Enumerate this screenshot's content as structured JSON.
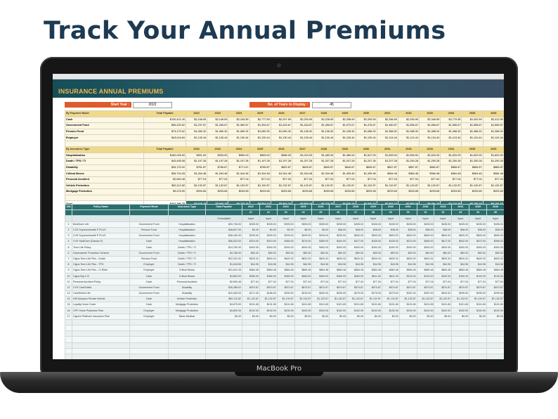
{
  "headline": "Track Your Annual Premiums",
  "device_label": "MacBook Pro",
  "sheet": {
    "title": "INSURANCE ANNUAL PREMIUMS",
    "start_year_label": "Start Year :",
    "start_year": "2022",
    "years_label": "No. of Years to Display :",
    "years_value": "45"
  },
  "years": [
    "2022",
    "2023",
    "2024",
    "2025",
    "2026",
    "2027",
    "2028",
    "2029",
    "2030",
    "2031",
    "2032",
    "2033",
    "2034",
    "2035",
    "2036"
  ],
  "by_payment": {
    "header": "By Payment Mode",
    "total_header": "Total Payable",
    "rows": [
      {
        "name": "Cash",
        "total": "$130,421.40",
        "vals": [
          "$2,158.59",
          "$2,148.59",
          "$2,163.59",
          "$2,777.59",
          "$2,297.59",
          "$2,200.59",
          "$2,228.59",
          "$2,258.59",
          "$2,259.59",
          "$2,286.59",
          "$2,330.59",
          "$2,346.59",
          "$2,770.59",
          "$2,402.59",
          "$2,412.59"
        ]
      },
      {
        "name": "Government Fund",
        "total": "$96,209.52",
        "vals": [
          "$1,237.67",
          "$1,265.67",
          "$1,369.67",
          "$1,394.67",
          "$1,429.67",
          "$1,434.67",
          "$1,455.67",
          "$1,570.67",
          "$1,476.67",
          "$1,480.67",
          "$1,556.67",
          "$1,556.67",
          "$1,556.67",
          "$1,556.67",
          "$1,556.67"
        ]
      },
      {
        "name": "Pension Fund",
        "total": "$73,170.92",
        "vals": [
          "$1,080.32",
          "$1,080.32",
          "$1,080.32",
          "$1,080.32",
          "$1,080.32",
          "$1,136.32",
          "$1,136.32",
          "$1,136.32",
          "$1,088.32",
          "$1,388.32",
          "$1,388.32",
          "$1,388.32",
          "$1,388.32",
          "$1,388.32",
          "$1,388.32"
        ]
      },
      {
        "name": "Employer",
        "total": "$43,044.84",
        "vals": [
          "$1,130.44",
          "$1,130.44",
          "$1,130.44",
          "$1,130.44",
          "$1,130.44",
          "$1,130.44",
          "$1,130.44",
          "$1,130.44",
          "$1,130.44",
          "$1,124.44",
          "$1,124.44",
          "$1,124.44",
          "$1,124.44",
          "$1,124.44",
          "$1,124.44"
        ]
      }
    ],
    "total_label": "Total",
    "total": "$342,396.78",
    "total_vals": [
      "$5,628.19",
      "$5,666.19",
      "$5,776.19",
      "$5,804.19",
      "$5,804.19",
      "$5,854.19",
      "$6,216.19",
      "$6,540.19",
      "$6,540.19",
      "$6,563.19",
      "$6,563.19",
      "$6,091.19",
      "$6,122.19",
      "$6,150.19",
      "$6,151.19"
    ]
  },
  "by_type": {
    "header": "By Insurance Type",
    "total_header": "Total Payable",
    "rows": [
      {
        "name": "Hospitalisation",
        "total": "$182,026.00",
        "vals": [
          "$901.00",
          "$934.00",
          "$969.00",
          "$983.00",
          "$986.00",
          "$1,010.00",
          "$1,480.00",
          "$1,480.00",
          "$1,547.00",
          "$1,559.00",
          "$1,559.00",
          "$1,620.00",
          "$1,620.00",
          "$1,620.00",
          "$1,620.00"
        ]
      },
      {
        "name": "Death / TPD / TI",
        "total": "$43,495.08",
        "vals": [
          "$1,197.28",
          "$1,197.28",
          "$1,197.28",
          "$1,197.28",
          "$1,197.28",
          "$1,207.28",
          "$1,207.28",
          "$1,207.28",
          "$1,207.28",
          "$1,207.28",
          "$1,250.28",
          "$1,250.28",
          "$1,250.28",
          "$1,250.28",
          "$1,250.28"
        ]
      },
      {
        "name": "Disability",
        "total": "$26,722.02",
        "vals": [
          "$761.87",
          "$766.87",
          "$771.87",
          "$785.87",
          "$820.87",
          "$825.87",
          "$840.87",
          "$840.87",
          "$845.87",
          "$857.87",
          "$857.87",
          "$862.87",
          "$865.87",
          "$865.87",
          "$865.87"
        ]
      },
      {
        "name": "Critical Illness",
        "total": "$36,704.28",
        "vals": [
          "$1,264.48",
          "$1,264.48",
          "$1,344.48",
          "$1,344.48",
          "$1,344.48",
          "$1,344.48",
          "$1,344.48",
          "$1,495.48",
          "$1,495.48",
          "$984.48",
          "$984.48",
          "$984.48",
          "$984.48",
          "$984.48",
          "$984.48"
        ]
      },
      {
        "name": "Personal Accident",
        "total": "$2,650.48",
        "vals": [
          "$77.04",
          "$77.04",
          "$77.04",
          "$77.04",
          "$77.04",
          "$77.04",
          "$77.04",
          "$77.04",
          "$77.04",
          "$77.04",
          "$77.04",
          "$77.04",
          "$77.04",
          "$77.04",
          "$77.04"
        ]
      },
      {
        "name": "Vehicle Protection",
        "total": "$52,112.82",
        "vals": [
          "$1,132.87",
          "$1,132.87",
          "$1,132.87",
          "$1,132.87",
          "$1,132.87",
          "$1,132.87",
          "$1,132.87",
          "$1,132.87",
          "$1,132.87",
          "$1,132.87",
          "$1,132.87",
          "$1,132.87",
          "$1,132.87",
          "$1,132.87",
          "$1,132.87"
        ]
      },
      {
        "name": "Mortgage Protection",
        "total": "$9,475.90",
        "vals": [
          "$293.65",
          "$293.65",
          "$293.65",
          "$293.65",
          "$293.65",
          "$293.65",
          "$293.65",
          "$293.65",
          "$293.65",
          "$293.65",
          "$293.65",
          "$293.65",
          "$293.65",
          "$293.65",
          "$293.65"
        ]
      }
    ],
    "total_label": "Total",
    "total": "$342,396.78",
    "total_vals": [
      "$5,628.19",
      "$5,666.19",
      "$5,776.19",
      "$5,804.19",
      "$5,804.19",
      "$5,854.19",
      "$6,216.19",
      "$6,540.19",
      "$6,540.19",
      "$6,563.19",
      "$6,563.19",
      "$6,091.19",
      "$6,122.19",
      "$6,150.19",
      "$6,151.19"
    ]
  },
  "policies": {
    "headers": {
      "sn": "S/N",
      "name": "Policy Name",
      "payment": "Payment Mode",
      "type": "Insurance Type",
      "total": "Total Payable"
    },
    "sub_formula": "Formulated",
    "sub_input": "Input",
    "ages": [
      "21",
      "22",
      "23",
      "24",
      "25",
      "26",
      "27",
      "28",
      "29",
      "30",
      "31",
      "32",
      "33",
      "34",
      "35"
    ],
    "rows": [
      {
        "sn": "1",
        "name": "MediCare Life",
        "payment": "Government Fund",
        "type": "Hospitalisation",
        "total": "$20,706.00",
        "vals": [
          "$305.00",
          "$305.00",
          "$305.00",
          "$305.00",
          "$305.00",
          "$305.00",
          "$435.00",
          "$435.00",
          "$435.00",
          "$435.00",
          "$435.00",
          "$435.00",
          "$435.00",
          "$435.00",
          "$435.00"
        ]
      },
      {
        "sn": "2",
        "name": "CVS Supremehealth P PLUS",
        "payment": "Pension Fund",
        "type": "Hospitalisation",
        "total": "$48,627.00",
        "vals": [
          "$0.00",
          "$0.00",
          "$0.00",
          "$0.00",
          "$0.00",
          "$38.00",
          "$38.00",
          "$38.00",
          "$38.00",
          "$38.00",
          "$38.00",
          "$38.00",
          "$38.00",
          "$38.00",
          "$38.00"
        ]
      },
      {
        "sn": "3",
        "name": "CVS Supremehealth P PLUS",
        "payment": "Government Fund",
        "type": "Hospitalisation",
        "total": "$38,180.00",
        "vals": [
          "$299.00",
          "$299.00",
          "$299.00",
          "$299.00",
          "$299.00",
          "$299.00",
          "$600.00",
          "$600.00",
          "$600.00",
          "$600.00",
          "$600.00",
          "$600.00",
          "$600.00",
          "$600.00",
          "$600.00"
        ]
      },
      {
        "sn": "4",
        "name": "CVS TotalCare (Classic-P)",
        "payment": "Cash",
        "type": "Hospitalisation",
        "total": "$56,523.00",
        "vals": [
          "$310.00",
          "$319.00",
          "$365.00",
          "$374.00",
          "$389.00",
          "$404.00",
          "$417.00",
          "$435.00",
          "$435.00",
          "$474.00",
          "$489.00",
          "$517.00",
          "$542.00",
          "$572.00",
          "$596.00"
        ]
      },
      {
        "sn": "5",
        "name": "Term Life Policy",
        "payment": "Cash",
        "type": "Death / TPD / TI",
        "total": "$14,760.00",
        "vals": [
          "$492.00",
          "$492.00",
          "$492.00",
          "$492.00",
          "$492.00",
          "$492.00",
          "$492.00",
          "$492.00",
          "$492.00",
          "$492.00",
          "$492.00",
          "$492.00",
          "$492.00",
          "$492.00",
          "$492.00"
        ]
      },
      {
        "sn": "6",
        "name": "Dependants' Protection Scheme",
        "payment": "Government Fund",
        "type": "Death / TPD / TI",
        "total": "$4,785.00",
        "vals": [
          "$50.00",
          "$50.00",
          "$50.00",
          "$50.00",
          "$50.00",
          "$50.00",
          "$50.00",
          "$50.00",
          "$50.00",
          "$50.00",
          "$50.00",
          "$50.00",
          "$50.00",
          "$50.00",
          "$50.00"
        ]
      },
      {
        "sn": "7",
        "name": "Cigna Term Life Plus - Death",
        "payment": "Pension Fund",
        "type": "Death / TPD / TI",
        "total": "$22,331.52",
        "vals": [
          "$620.32",
          "$620.32",
          "$620.32",
          "$620.32",
          "$620.32",
          "$620.32",
          "$620.32",
          "$620.32",
          "$620.32",
          "$620.32",
          "$620.32",
          "$620.32",
          "$620.32",
          "$620.32",
          "$620.32"
        ]
      },
      {
        "sn": "8",
        "name": "Cigna Term Life Plus - TPD",
        "payment": "Employer",
        "type": "Death / TPD / TI",
        "total": "$1,618.56",
        "vals": [
          "$44.96",
          "$44.96",
          "$44.96",
          "$44.96",
          "$44.96",
          "$44.96",
          "$44.96",
          "$44.96",
          "$44.96",
          "$44.96",
          "$44.96",
          "$44.96",
          "$44.96",
          "$44.96",
          "$44.96"
        ]
      },
      {
        "sn": "9",
        "name": "Cigna Term Life Plus - CI Rider",
        "payment": "Employer",
        "type": "Critical Illness",
        "total": "$31,841.28",
        "vals": [
          "$884.48",
          "$884.48",
          "$884.48",
          "$884.48",
          "$884.48",
          "$884.48",
          "$884.48",
          "$884.48",
          "$884.48",
          "$884.48",
          "$884.48",
          "$884.48",
          "$884.48",
          "$884.48",
          "$884.48"
        ]
      },
      {
        "sn": "10",
        "name": "Cigna Big 3 CI",
        "payment": "Cash",
        "type": "Critical Illness",
        "total": "$4,863.00",
        "vals": [
          "$380.00",
          "$380.00",
          "$460.00",
          "$460.00",
          "$460.00",
          "$460.00",
          "$460.00",
          "$611.00",
          "$611.00",
          "$100.00",
          "$100.00",
          "$100.00",
          "$100.00",
          "$100.00",
          "$100.00"
        ]
      },
      {
        "sn": "11",
        "name": "Personal Accident Policy",
        "payment": "Cash",
        "type": "Personal Accident",
        "total": "$2,650.48",
        "vals": [
          "$77.04",
          "$77.04",
          "$77.04",
          "$77.04",
          "$77.04",
          "$77.04",
          "$77.04",
          "$77.04",
          "$77.04",
          "$77.04",
          "$77.04",
          "$77.04",
          "$77.04",
          "$77.04",
          "$77.04"
        ]
      },
      {
        "sn": "12",
        "name": "CVS CareShield",
        "payment": "Government Fund",
        "type": "Disability",
        "total": "$26,386.02",
        "vals": [
          "$570.87",
          "$570.87",
          "$570.87",
          "$570.87",
          "$570.87",
          "$570.87",
          "$570.87",
          "$570.87",
          "$570.87",
          "$570.87",
          "$570.87",
          "$570.87",
          "$570.87",
          "$570.87",
          "$570.87"
        ]
      },
      {
        "sn": "13",
        "name": "CareShield Life",
        "payment": "Government Fund",
        "type": "Disability",
        "total": "$10,463.00",
        "vals": [
          "$171.00",
          "$186.00",
          "$200.00",
          "$215.00",
          "$250.00",
          "$250.00",
          "$275.00",
          "$275.00",
          "$275.00",
          "$287.00",
          "$287.00",
          "$292.00",
          "$295.00",
          "$295.00",
          "$295.00"
        ]
      },
      {
        "sn": "14",
        "name": "NIS Autoplus Private Vehicle",
        "payment": "Cash",
        "type": "Vehicle Protection",
        "total": "$52,112.82",
        "vals": [
          "$1,132.87",
          "$1,132.87",
          "$1,132.87",
          "$1,132.87",
          "$1,132.87",
          "$1,132.87",
          "$1,132.87",
          "$1,132.87",
          "$1,132.87",
          "$1,132.87",
          "$1,132.87",
          "$1,132.87",
          "$1,132.87",
          "$1,132.87",
          "$1,132.87"
        ]
      },
      {
        "sn": "15",
        "name": "Loyalty Home Cover",
        "payment": "Cash",
        "type": "Mortgage Protection",
        "total": "$4,675.90",
        "vals": [
          "$101.65",
          "$101.65",
          "$101.65",
          "$101.65",
          "$101.65",
          "$101.65",
          "$101.65",
          "$101.65",
          "$101.65",
          "$101.65",
          "$101.65",
          "$101.65",
          "$101.65",
          "$101.65",
          "$101.65"
        ]
      },
      {
        "sn": "16",
        "name": "CPF Home Protection Plan",
        "payment": "Employer",
        "type": "Mortgage Protection",
        "total": "$4,800.00",
        "vals": [
          "$192.00",
          "$192.00",
          "$192.00",
          "$192.00",
          "$192.00",
          "$192.00",
          "$192.00",
          "$192.00",
          "$192.00",
          "$192.00",
          "$192.00",
          "$192.00",
          "$192.00",
          "$192.00",
          "$192.00"
        ]
      },
      {
        "sn": "17",
        "name": "Cigna's Platinum Insurance Plan",
        "payment": "Employer",
        "type": "Basic Medical",
        "total": "$0.00",
        "vals": [
          "$0.00",
          "$0.00",
          "$0.00",
          "$0.00",
          "$0.00",
          "$0.00",
          "$0.00",
          "$0.00",
          "$0.00",
          "$0.00",
          "$0.00",
          "$0.00",
          "$0.00",
          "$0.00",
          "$0.00"
        ]
      }
    ],
    "blank_rows": 9
  }
}
